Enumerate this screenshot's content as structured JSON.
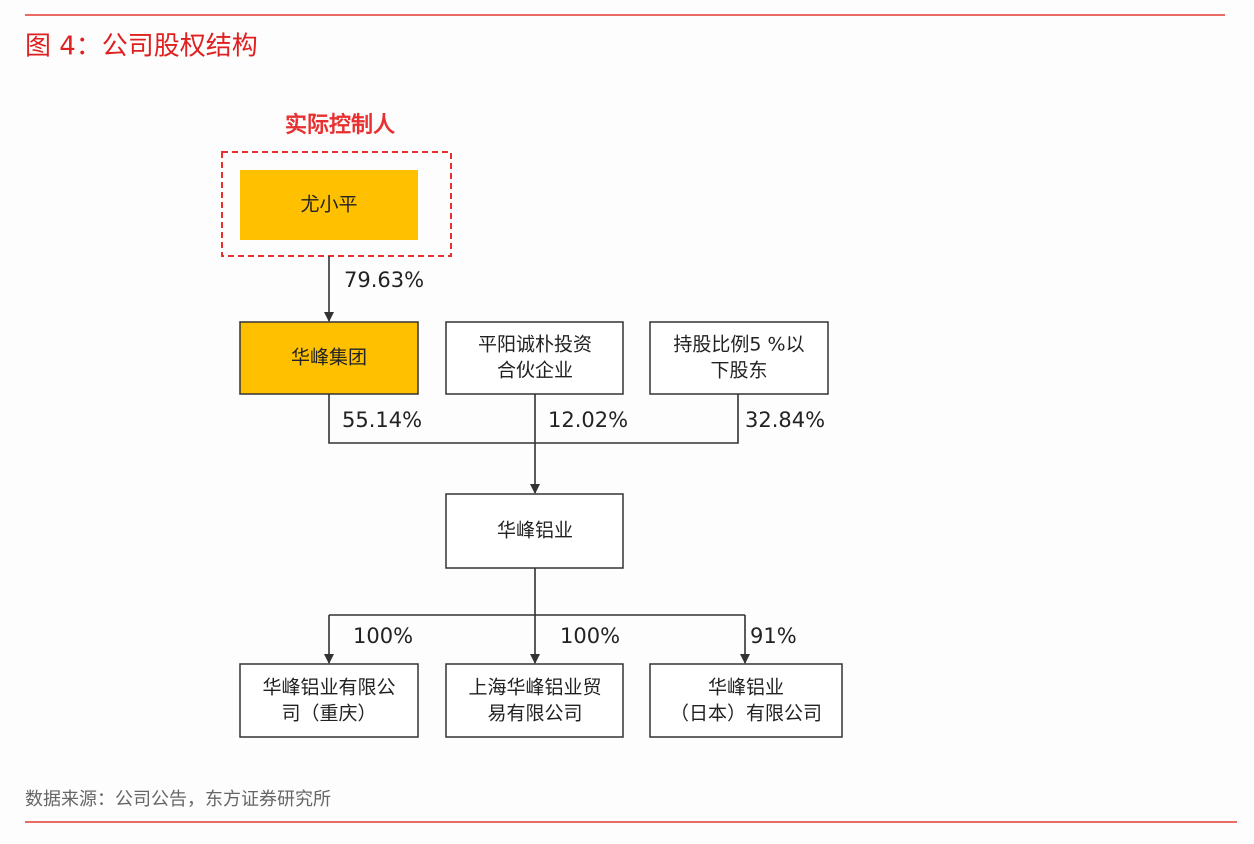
{
  "header": {
    "title": "图 4：公司股权结构"
  },
  "diagram": {
    "controller_label": "实际控制人",
    "nodes": [
      {
        "lines": [
          "尤小平"
        ]
      },
      {
        "lines": [
          "华峰集团"
        ]
      },
      {
        "lines": [
          "平阳诚朴投资",
          "合伙企业"
        ]
      },
      {
        "lines": [
          "持股比例5 %以",
          "下股东"
        ]
      },
      {
        "lines": [
          "华峰铝业"
        ]
      },
      {
        "lines": [
          "华峰铝业有限公",
          "司（重庆）"
        ]
      },
      {
        "lines": [
          "上海华峰铝业贸",
          "易有限公司"
        ]
      },
      {
        "lines": [
          "华峰铝业",
          "（日本）有限公司"
        ]
      }
    ],
    "edges": [
      {
        "label": "79.63%"
      },
      {
        "label": "55.14%"
      },
      {
        "label": "12.02%"
      },
      {
        "label": "32.84%"
      },
      {
        "label": "100%"
      },
      {
        "label": "100%"
      },
      {
        "label": "91%"
      }
    ]
  },
  "footer": {
    "source": "数据来源：公司公告，东方证券研究所"
  }
}
